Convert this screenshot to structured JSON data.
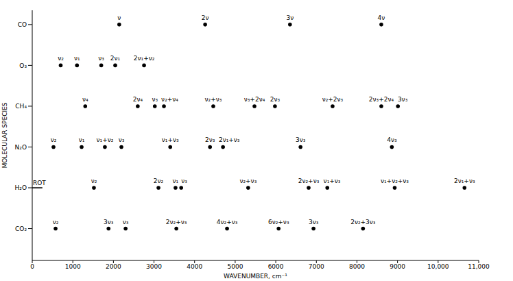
{
  "chart_data": {
    "type": "scatter",
    "x_label": "WAVENUMBER, cm⁻¹",
    "y_label": "MOLECULAR SPECIES",
    "xlim": [
      0,
      11000
    ],
    "xticks": [
      0,
      1000,
      2000,
      3000,
      4000,
      5000,
      6000,
      7000,
      8000,
      9000,
      {
        "value": 10000,
        "label": "10,000"
      },
      {
        "value": 11000,
        "label": "11,000"
      }
    ],
    "color": "#000000",
    "marker": "circle",
    "series": [
      {
        "name": "CO",
        "x": [
          2143,
          4260,
          6350,
          8600
        ],
        "labels": [
          "ν",
          "2ν",
          "3ν",
          "4ν"
        ]
      },
      {
        "name": "O₃",
        "x": [
          701,
          1103,
          1700,
          2045,
          2755
        ],
        "labels": [
          "ν₂",
          "ν₁",
          "ν₃",
          "2ν₁",
          "2ν₁+ν₂"
        ]
      },
      {
        "name": "CH₄",
        "x": [
          1306,
          2600,
          3020,
          3245,
          4460,
          5475,
          5980,
          7400,
          8600,
          9010
        ],
        "labels": [
          "ν₄",
          "2ν₄",
          "ν₃",
          "ν₂+ν₄",
          "ν₂+ν₃",
          "ν₃+2ν₄",
          "2ν₃",
          "ν₂+2ν₃",
          "2ν₃+2ν₄",
          "3ν₃"
        ]
      },
      {
        "name": "N₂O",
        "x": [
          524,
          1217,
          1790,
          2197,
          3400,
          4380,
          4700,
          6610,
          8860
        ],
        "labels": [
          "ν₂",
          "ν₁",
          "ν₁+ν₂",
          "ν₃",
          "ν₁+ν₃",
          "2ν₃",
          "2ν₁+ν₃",
          "3ν₃",
          "4ν₃"
        ]
      },
      {
        "name": "H₂O",
        "x": [
          1520,
          3110,
          3530,
          3670,
          5320,
          6810,
          7270,
          8930,
          10650
        ],
        "labels": [
          "ν₂",
          "2ν₂",
          "ν₁",
          "ν₃",
          "ν₂+ν₃",
          "2ν₂+ν₃",
          "ν₁+ν₃",
          "ν₁+ν₂+ν₃",
          "2ν₁+ν₃"
        ]
      },
      {
        "name": "CO₂",
        "x": [
          575,
          1880,
          2300,
          3550,
          4800,
          6070,
          6930,
          8150
        ],
        "labels": [
          "ν₂",
          "3ν₃",
          "ν₃",
          "2ν₂+ν₃",
          "4ν₂+ν₃",
          "6ν₂+ν₃",
          "3ν₃",
          "2ν₂+3ν₃"
        ]
      }
    ],
    "annotations": [
      {
        "category": "H₂O",
        "text": "ROT",
        "x": [
          0,
          250
        ]
      }
    ]
  }
}
